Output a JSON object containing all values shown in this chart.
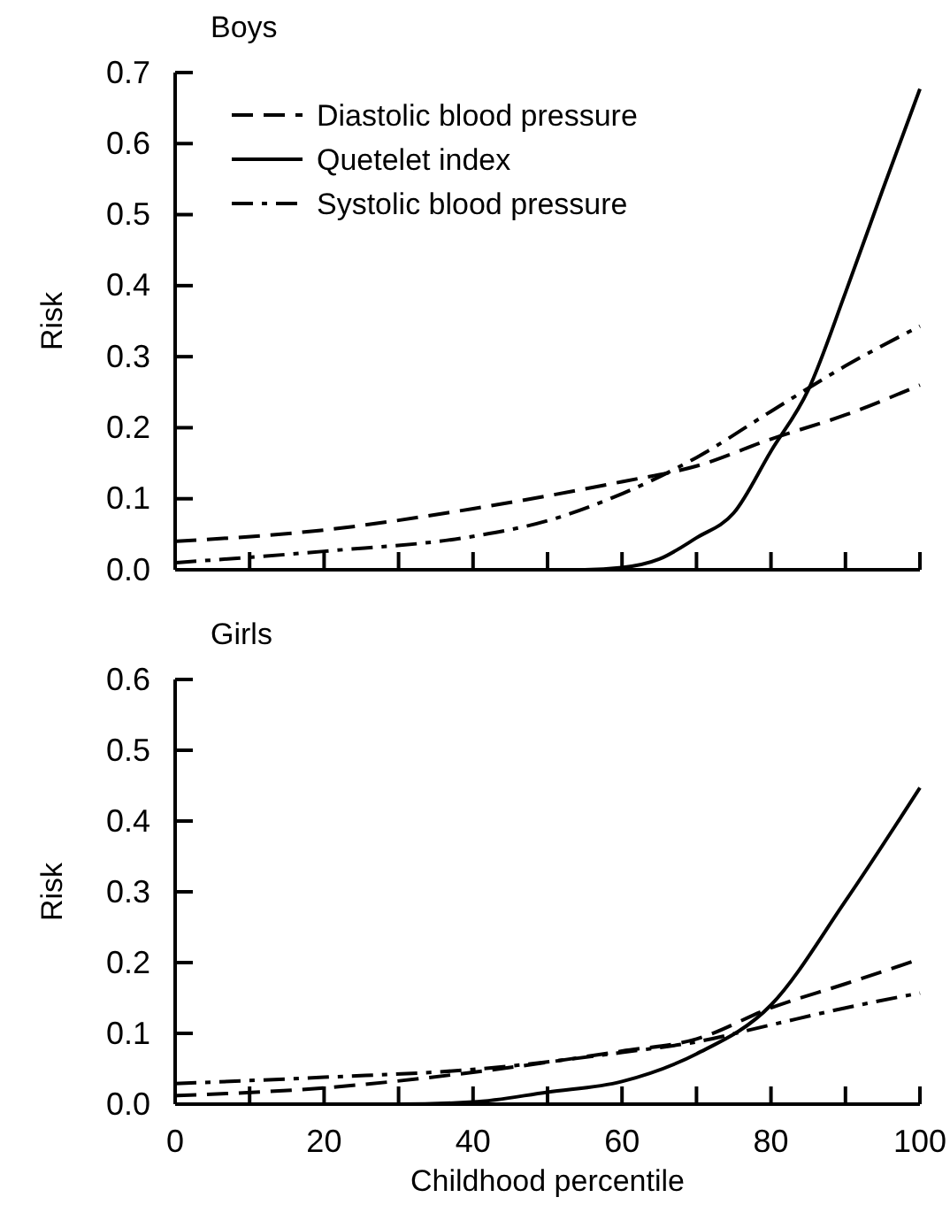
{
  "chart_data": [
    {
      "type": "line",
      "title": "Boys",
      "ylabel": "Risk",
      "xlim": [
        0,
        100
      ],
      "ylim": [
        0,
        0.7
      ],
      "xticks": [
        0,
        10,
        20,
        30,
        40,
        50,
        60,
        70,
        80,
        90,
        100
      ],
      "yticks": [
        {
          "value": 0,
          "label": "0.0"
        },
        0.1,
        0.2,
        0.3,
        0.4,
        0.5,
        0.6,
        0.7
      ],
      "tick_labels": "y",
      "legend": "top left",
      "grid": false,
      "series": [
        {
          "name": "Diastolic blood pressure",
          "color": "#000000",
          "line_style": "dashed",
          "x": [
            0,
            20,
            40,
            60,
            70,
            80,
            90,
            100
          ],
          "values": [
            0.04,
            0.056,
            0.086,
            0.124,
            0.146,
            0.184,
            0.218,
            0.26
          ]
        },
        {
          "name": "Quetelet index",
          "color": "#000000",
          "line_style": "solid",
          "x": [
            0,
            20,
            40,
            55,
            60,
            65,
            70,
            75,
            80,
            85,
            90,
            95,
            100
          ],
          "values": [
            0,
            0,
            0,
            0,
            0.003,
            0.015,
            0.045,
            0.08,
            0.167,
            0.253,
            0.39,
            0.535,
            0.677
          ]
        },
        {
          "name": "Systolic blood pressure",
          "color": "#000000",
          "line_style": "dashdot",
          "x": [
            0,
            20,
            40,
            50,
            60,
            70,
            80,
            90,
            100
          ],
          "values": [
            0.01,
            0.026,
            0.047,
            0.069,
            0.107,
            0.158,
            0.223,
            0.287,
            0.343
          ]
        }
      ]
    },
    {
      "type": "line",
      "title": "Girls",
      "ylabel": "Risk",
      "xlabel": "Childhood percentile",
      "xlim": [
        0,
        100
      ],
      "ylim": [
        0,
        0.6
      ],
      "xticks": [
        0,
        {
          "value": 10,
          "label": null
        },
        20,
        {
          "value": 30,
          "label": null
        },
        40,
        {
          "value": 50,
          "label": null
        },
        60,
        {
          "value": 70,
          "label": null
        },
        80,
        {
          "value": 90,
          "label": null
        },
        100
      ],
      "yticks": [
        {
          "value": 0,
          "label": "0.0"
        },
        0.1,
        0.2,
        0.3,
        0.4,
        0.5,
        0.6
      ],
      "grid": false,
      "series": [
        {
          "color": "#000000",
          "line_style": "dashed",
          "x": [
            0,
            20,
            40,
            60,
            70,
            80,
            90,
            100
          ],
          "values": [
            0.012,
            0.023,
            0.045,
            0.075,
            0.092,
            0.136,
            0.17,
            0.205
          ]
        },
        {
          "color": "#000000",
          "line_style": "solid",
          "x": [
            0,
            20,
            30,
            40,
            50,
            60,
            70,
            80,
            90,
            100
          ],
          "values": [
            0,
            0,
            0,
            0.003,
            0.017,
            0.032,
            0.071,
            0.14,
            0.287,
            0.447
          ]
        },
        {
          "color": "#000000",
          "line_style": "dashdot",
          "x": [
            0,
            20,
            40,
            60,
            70,
            80,
            90,
            100
          ],
          "values": [
            0.029,
            0.038,
            0.049,
            0.073,
            0.088,
            0.112,
            0.136,
            0.157
          ]
        }
      ]
    }
  ]
}
